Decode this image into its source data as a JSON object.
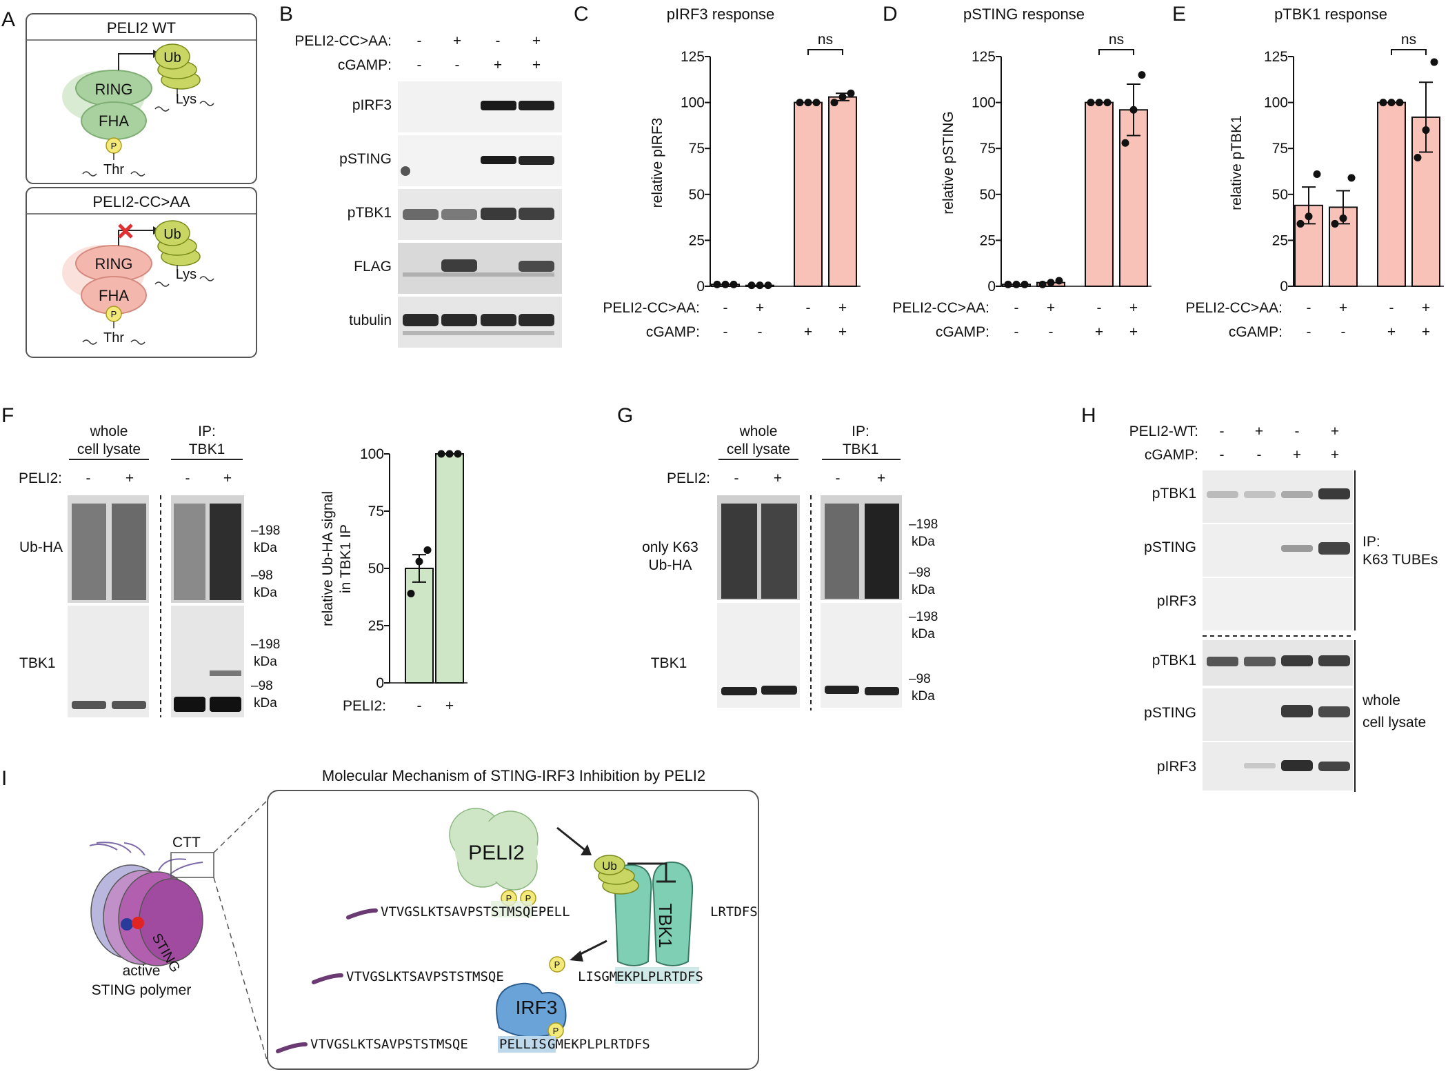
{
  "panelA": {
    "letter": "A",
    "top_title": "PELI2 WT",
    "bottom_title": "PELI2-CC>AA",
    "ring": "RING",
    "fha": "FHA",
    "ub": "Ub",
    "lys": "Lys",
    "thr": "Thr",
    "p": "P"
  },
  "panelB": {
    "letter": "B",
    "row_labels": [
      "PELI2-CC>AA:",
      "cGAMP:"
    ],
    "signs": [
      [
        "-",
        "+",
        "-",
        "+"
      ],
      [
        "-",
        "-",
        "+",
        "+"
      ]
    ],
    "blots": [
      "pIRF3",
      "pSTING",
      "pTBK1",
      "FLAG",
      "tubulin"
    ]
  },
  "bar_charts": {
    "row_labels": [
      "PELI2-CC>AA:",
      "cGAMP:"
    ],
    "signs": [
      [
        "-",
        "+",
        "-",
        "+"
      ],
      [
        "-",
        "-",
        "+",
        "+"
      ]
    ],
    "ns": "ns",
    "C": {
      "letter": "C",
      "title": "pIRF3 response",
      "ylabel": "relative pIRF3"
    },
    "D": {
      "letter": "D",
      "title": "pSTING response",
      "ylabel": "relative pSTING"
    },
    "E": {
      "letter": "E",
      "title": "pTBK1 response",
      "ylabel": "relative pTBK1"
    }
  },
  "panelF": {
    "letter": "F",
    "hdr_left": [
      "whole",
      "cell lysate"
    ],
    "hdr_right": [
      "IP:",
      "TBK1"
    ],
    "peli2_label": "PELI2:",
    "signs": [
      "-",
      "+",
      "-",
      "+"
    ],
    "blots": [
      "Ub-HA",
      "TBK1"
    ],
    "markers": [
      "–198",
      "kDa",
      "–98",
      "kDa"
    ],
    "bar_ylabel": [
      "relative Ub-HA signal",
      "in TBK1 IP"
    ],
    "bar_signs": [
      "-",
      "+"
    ]
  },
  "panelG": {
    "letter": "G",
    "hdr_left": [
      "whole",
      "cell lysate"
    ],
    "hdr_right": [
      "IP:",
      "TBK1"
    ],
    "peli2_label": "PELI2:",
    "signs": [
      "-",
      "+",
      "-",
      "+"
    ],
    "blots": [
      "only K63",
      "Ub-HA",
      "TBK1"
    ],
    "markers": [
      "–198",
      "kDa",
      "–98",
      "kDa"
    ]
  },
  "panelH": {
    "letter": "H",
    "row_labels": [
      "PELI2-WT:",
      "cGAMP:"
    ],
    "signs": [
      [
        "-",
        "+",
        "-",
        "+"
      ],
      [
        "-",
        "-",
        "+",
        "+"
      ]
    ],
    "blots_top": [
      "pTBK1",
      "pSTING",
      "pIRF3"
    ],
    "blots_bottom": [
      "pTBK1",
      "pSTING",
      "pIRF3"
    ],
    "group_top": [
      "IP:",
      "K63 TUBEs"
    ],
    "group_bottom": [
      "whole",
      "cell lysate"
    ]
  },
  "panelI": {
    "letter": "I",
    "title": "Molecular Mechanism of STING-IRF3 Inhibition by PELI2",
    "ctt": "CTT",
    "sting": "STING",
    "caption": [
      "active",
      "STING polymer"
    ],
    "peli2": "PELI2",
    "tbk1": "TBK1",
    "irf3": "IRF3",
    "ub": "Ub",
    "p": "P",
    "seq1": "VTVGSLKTSAVPSTSTMSQEPELL",
    "seq1b": "LRTDFS",
    "seq2a": "VTVGSLKTSAVPSTSTMSQE",
    "seq2b": "LISGM",
    "seq2c": "EKPLPLRTDFS",
    "seq3a": "VTVGSLKTSAVPSTSTMSQE",
    "seq3b": "PELLIS",
    "seq3c": "GMEKPLPLRTDFS"
  },
  "chart_data": [
    {
      "panel": "C",
      "type": "bar",
      "categories": [
        "-/-",
        "+/-",
        "-/+",
        "+/+"
      ],
      "values": [
        1,
        0.5,
        100,
        103
      ],
      "errors": [
        0.3,
        0.3,
        0.3,
        2
      ],
      "points": [
        [
          1,
          1,
          1
        ],
        [
          0.5,
          0.5,
          0.5
        ],
        [
          100,
          100,
          100
        ],
        [
          100,
          103,
          105
        ]
      ],
      "title": "pIRF3 response",
      "ylabel": "relative pIRF3",
      "ylim": [
        0,
        125
      ],
      "yticks": [
        0,
        25,
        50,
        75,
        100,
        125
      ]
    },
    {
      "panel": "D",
      "type": "bar",
      "categories": [
        "-/-",
        "+/-",
        "-/+",
        "+/+"
      ],
      "values": [
        1,
        2,
        100,
        96
      ],
      "errors": [
        0.3,
        1,
        0.3,
        14
      ],
      "points": [
        [
          1,
          1,
          1
        ],
        [
          1,
          2,
          3
        ],
        [
          100,
          100,
          100
        ],
        [
          78,
          96,
          115
        ]
      ],
      "title": "pSTING response",
      "ylabel": "relative pSTING",
      "ylim": [
        0,
        125
      ],
      "yticks": [
        0,
        25,
        50,
        75,
        100,
        125
      ]
    },
    {
      "panel": "E",
      "type": "bar",
      "categories": [
        "-/-",
        "+/-",
        "-/+",
        "+/+"
      ],
      "values": [
        44,
        43,
        100,
        92
      ],
      "errors": [
        10,
        9,
        0.3,
        19
      ],
      "points": [
        [
          34,
          38,
          61
        ],
        [
          34,
          37,
          59
        ],
        [
          100,
          100,
          100
        ],
        [
          70,
          85,
          122
        ]
      ],
      "title": "pTBK1 response",
      "ylabel": "relative pTBK1",
      "ylim": [
        0,
        125
      ],
      "yticks": [
        0,
        25,
        50,
        75,
        100,
        125
      ]
    },
    {
      "panel": "F",
      "type": "bar",
      "categories": [
        "-",
        "+"
      ],
      "values": [
        50,
        100
      ],
      "errors": [
        6,
        0.3
      ],
      "points": [
        [
          39,
          53,
          58
        ],
        [
          100,
          100,
          100
        ]
      ],
      "ylabel": "relative Ub-HA signal in TBK1 IP",
      "ylim": [
        0,
        100
      ],
      "yticks": [
        0,
        25,
        50,
        75,
        100
      ]
    }
  ]
}
